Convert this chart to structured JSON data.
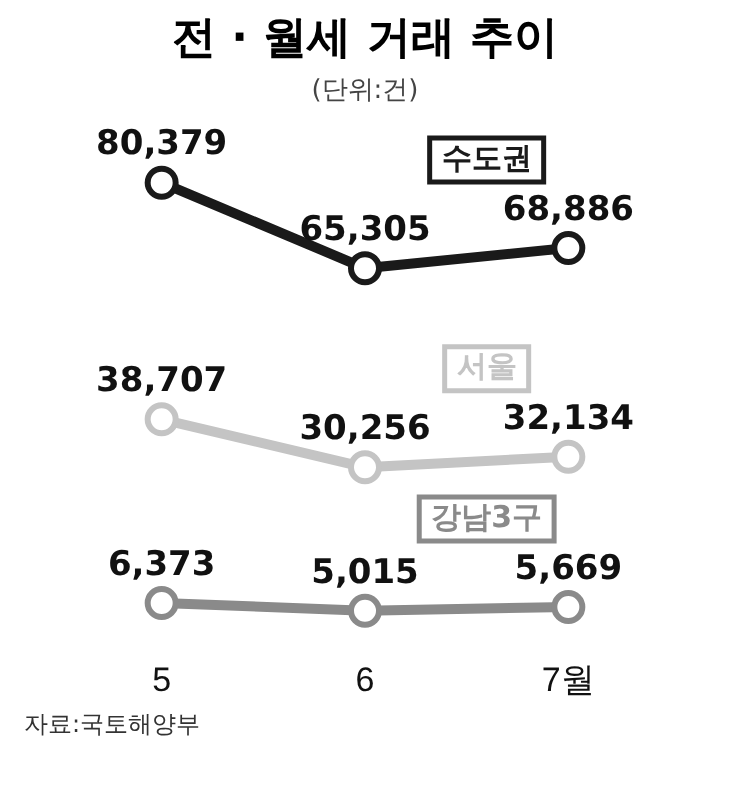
{
  "chart_data": {
    "type": "line",
    "title": "전 · 월세 거래 추이",
    "subtitle": "(단위:건)",
    "categories": [
      "5",
      "6",
      "7월"
    ],
    "series": [
      {
        "name": "수도권",
        "color": "#1a1a1a",
        "values": [
          80379,
          65305,
          68886
        ],
        "value_labels": [
          "80,379",
          "65,305",
          "68,886"
        ]
      },
      {
        "name": "서울",
        "color": "#c4c4c4",
        "values": [
          38707,
          30256,
          32134
        ],
        "value_labels": [
          "38,707",
          "30,256",
          "32,134"
        ]
      },
      {
        "name": "강남3구",
        "color": "#8a8a8a",
        "values": [
          6373,
          5015,
          5669
        ],
        "value_labels": [
          "6,373",
          "5,015",
          "5,669"
        ]
      }
    ],
    "legend": false,
    "marker": "circle",
    "grid": false,
    "tick_labels": "x",
    "annotations": [
      "자료:국토해양부"
    ]
  }
}
